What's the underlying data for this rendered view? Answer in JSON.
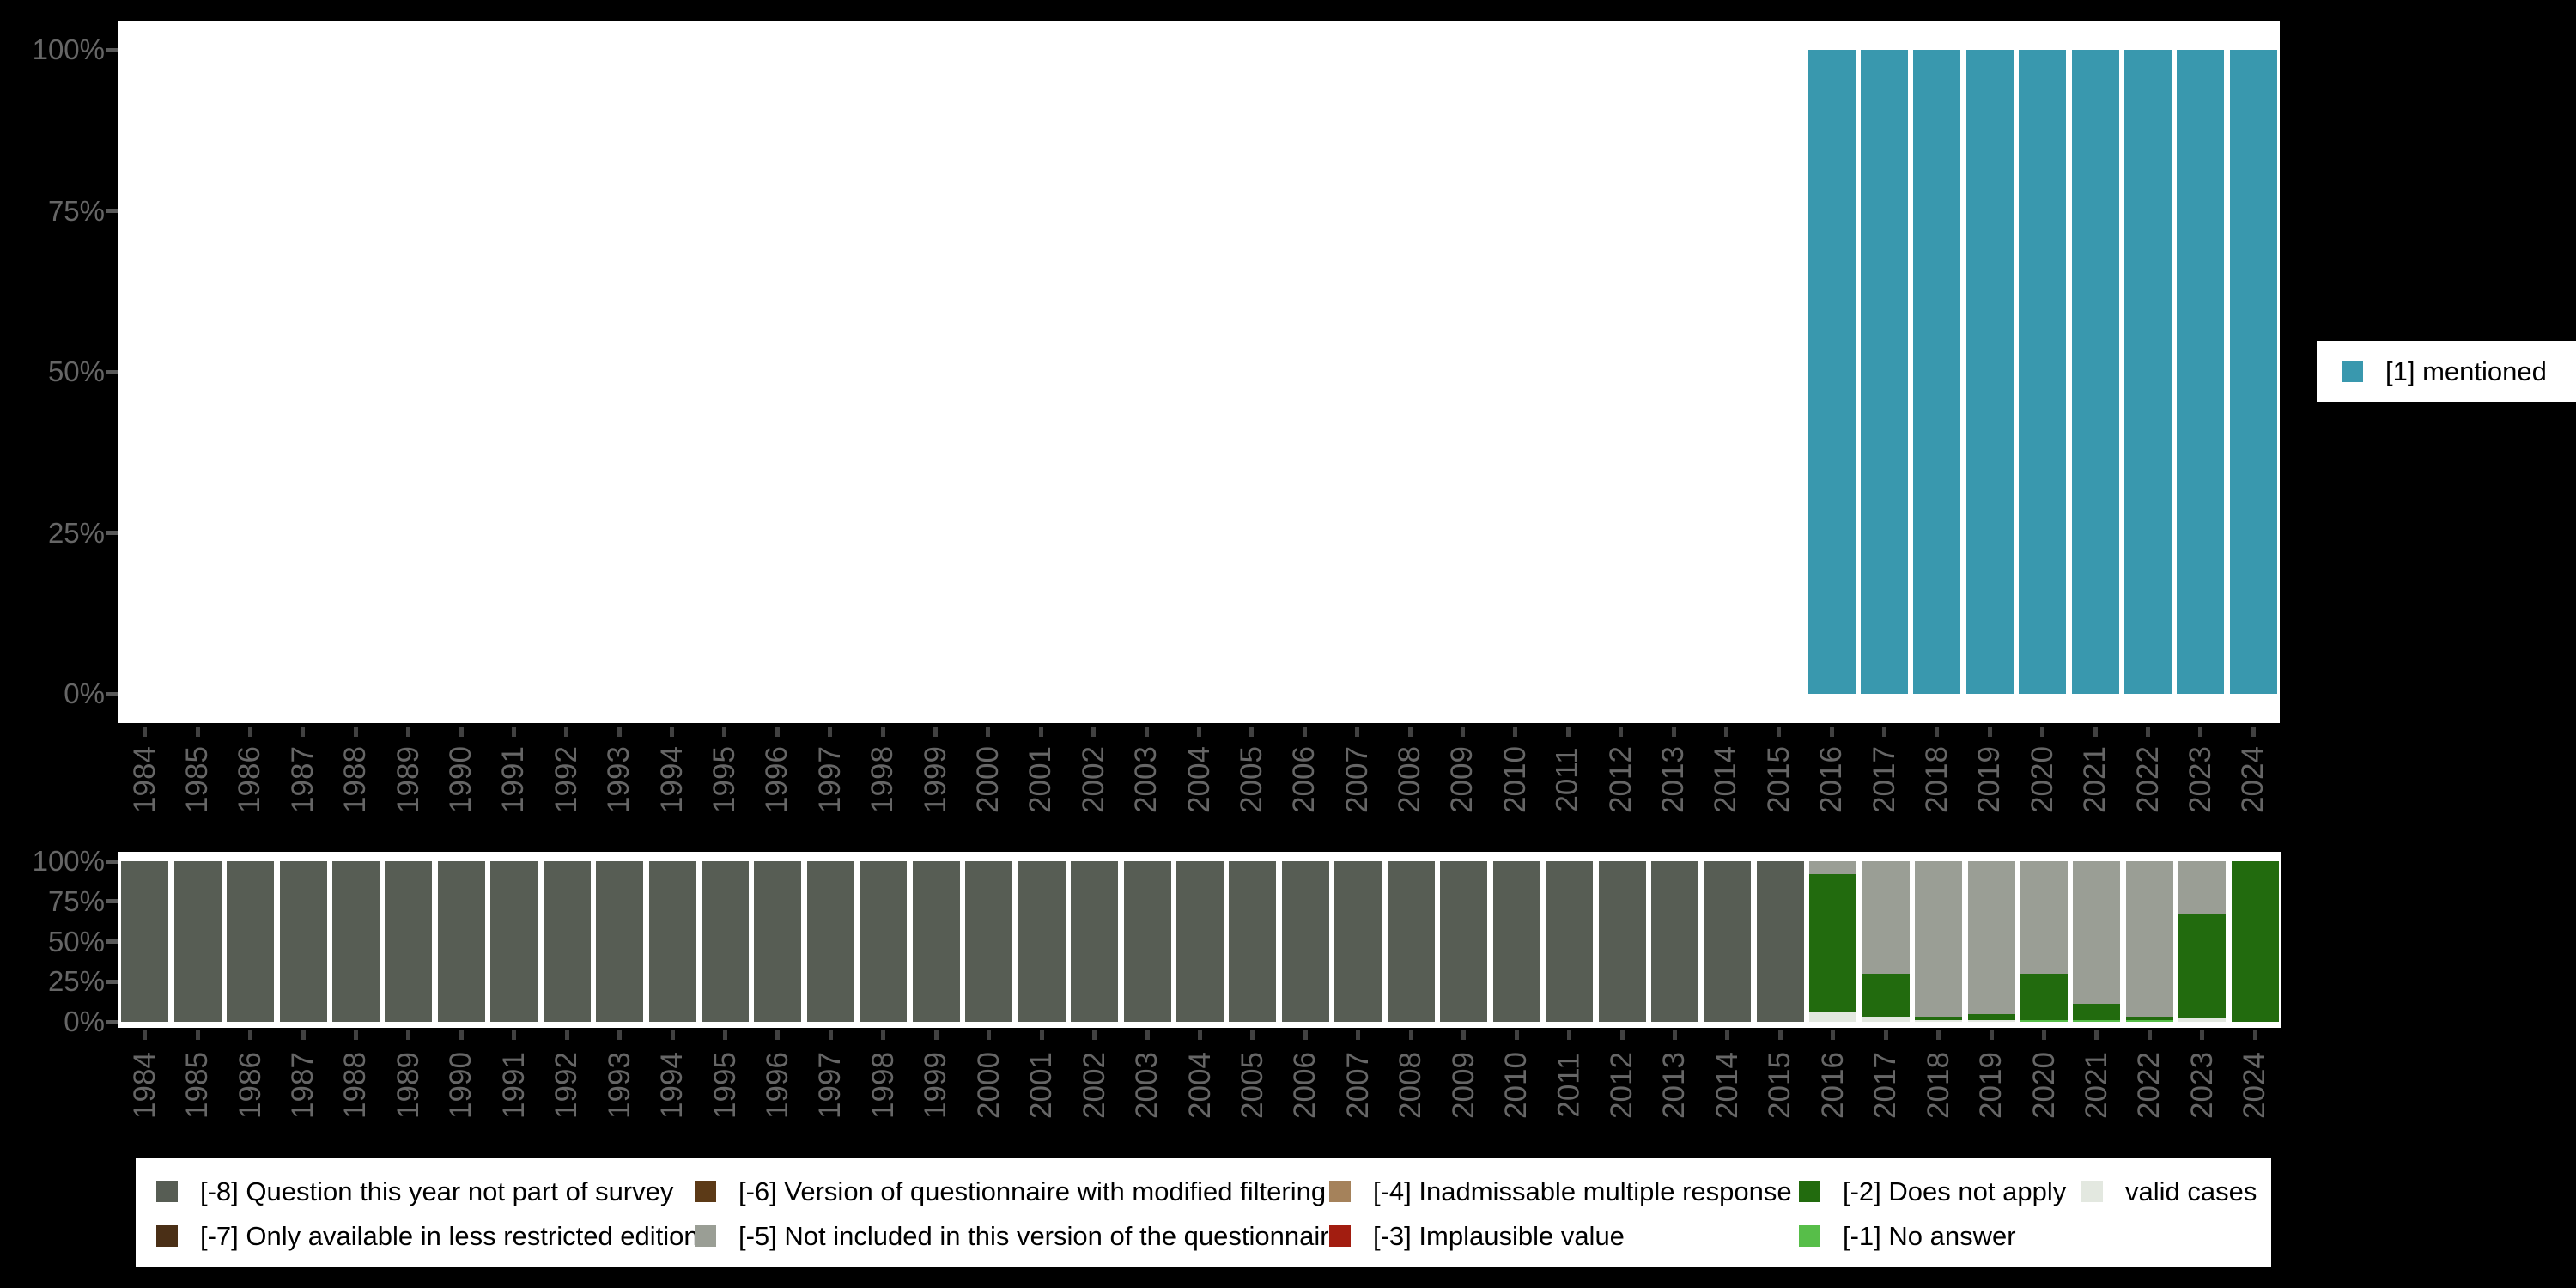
{
  "chart_data": [
    {
      "type": "bar",
      "title": "",
      "stacked": true,
      "grid": false,
      "legend_position": "right",
      "ylim": [
        0,
        100
      ],
      "y_tick_values": [
        0,
        25,
        50,
        75,
        100
      ],
      "y_tick_labels": [
        "0%",
        "25%",
        "50%",
        "75%",
        "100%"
      ],
      "categories": [
        "1984",
        "1985",
        "1986",
        "1987",
        "1988",
        "1989",
        "1990",
        "1991",
        "1992",
        "1993",
        "1994",
        "1995",
        "1996",
        "1997",
        "1998",
        "1999",
        "2000",
        "2001",
        "2002",
        "2003",
        "2004",
        "2005",
        "2006",
        "2007",
        "2008",
        "2009",
        "2010",
        "2011",
        "2012",
        "2013",
        "2014",
        "2015",
        "2016",
        "2017",
        "2018",
        "2019",
        "2020",
        "2021",
        "2022",
        "2023",
        "2024"
      ],
      "series": [
        {
          "name": "[1] mentioned",
          "color": "#3998AE",
          "values": [
            0,
            0,
            0,
            0,
            0,
            0,
            0,
            0,
            0,
            0,
            0,
            0,
            0,
            0,
            0,
            0,
            0,
            0,
            0,
            0,
            0,
            0,
            0,
            0,
            0,
            0,
            0,
            0,
            0,
            0,
            0,
            0,
            100,
            100,
            100,
            100,
            100,
            100,
            100,
            100,
            100
          ]
        }
      ]
    },
    {
      "type": "bar",
      "title": "",
      "stacked": true,
      "grid": false,
      "legend_position": "bottom",
      "ylim": [
        0,
        100
      ],
      "y_tick_values": [
        0,
        25,
        50,
        75,
        100
      ],
      "y_tick_labels": [
        "0%",
        "25%",
        "50%",
        "75%",
        "100%"
      ],
      "categories": [
        "1984",
        "1985",
        "1986",
        "1987",
        "1988",
        "1989",
        "1990",
        "1991",
        "1992",
        "1993",
        "1994",
        "1995",
        "1996",
        "1997",
        "1998",
        "1999",
        "2000",
        "2001",
        "2002",
        "2003",
        "2004",
        "2005",
        "2006",
        "2007",
        "2008",
        "2009",
        "2010",
        "2011",
        "2012",
        "2013",
        "2014",
        "2015",
        "2016",
        "2017",
        "2018",
        "2019",
        "2020",
        "2021",
        "2022",
        "2023",
        "2024"
      ],
      "series": [
        {
          "name": "valid cases",
          "color": "#E3E8E0",
          "values": [
            0,
            0,
            0,
            0,
            0,
            0,
            0,
            0,
            0,
            0,
            0,
            0,
            0,
            0,
            0,
            0,
            0,
            0,
            0,
            0,
            0,
            0,
            0,
            0,
            0,
            0,
            0,
            0,
            0,
            0,
            0,
            0,
            6,
            3,
            1,
            1,
            0,
            0,
            0,
            3,
            0
          ]
        },
        {
          "name": "[-1] No answer",
          "color": "#57BE49",
          "values": [
            0,
            0,
            0,
            0,
            0,
            0,
            0,
            0,
            0,
            0,
            0,
            0,
            0,
            0,
            0,
            0,
            0,
            0,
            0,
            0,
            0,
            0,
            0,
            0,
            0,
            0,
            0,
            0,
            0,
            0,
            0,
            0,
            0,
            0,
            0,
            0,
            1,
            1,
            1,
            0,
            0
          ]
        },
        {
          "name": "[-2] Does not apply",
          "color": "#226B0E",
          "values": [
            0,
            0,
            0,
            0,
            0,
            0,
            0,
            0,
            0,
            0,
            0,
            0,
            0,
            0,
            0,
            0,
            0,
            0,
            0,
            0,
            0,
            0,
            0,
            0,
            0,
            0,
            0,
            0,
            0,
            0,
            0,
            0,
            86,
            27,
            2,
            4,
            29,
            10,
            2,
            64,
            100
          ]
        },
        {
          "name": "[-5] Not included in this version of the questionnaire",
          "color": "#9A9E95",
          "values": [
            0,
            0,
            0,
            0,
            0,
            0,
            0,
            0,
            0,
            0,
            0,
            0,
            0,
            0,
            0,
            0,
            0,
            0,
            0,
            0,
            0,
            0,
            0,
            0,
            0,
            0,
            0,
            0,
            0,
            0,
            0,
            0,
            8,
            70,
            97,
            95,
            70,
            89,
            97,
            33,
            0
          ]
        },
        {
          "name": "[-8] Question this year not part of survey",
          "color": "#575D54",
          "values": [
            100,
            100,
            100,
            100,
            100,
            100,
            100,
            100,
            100,
            100,
            100,
            100,
            100,
            100,
            100,
            100,
            100,
            100,
            100,
            100,
            100,
            100,
            100,
            100,
            100,
            100,
            100,
            100,
            100,
            100,
            100,
            100,
            0,
            0,
            0,
            0,
            0,
            0,
            0,
            0,
            0
          ]
        }
      ]
    }
  ],
  "legend_top": {
    "items": [
      {
        "label": "[1] mentioned",
        "color": "#3998AE"
      }
    ]
  },
  "legend_bottom": {
    "columns": [
      [
        {
          "label": "[-8] Question this year not part of survey",
          "color": "#575D54"
        },
        {
          "label": "[-7] Only available in less restricted edition",
          "color": "#4A2F16"
        }
      ],
      [
        {
          "label": "[-6] Version of questionnaire with modified filtering",
          "color": "#5C3A17"
        },
        {
          "label": "[-5] Not included in this version of the questionnaire",
          "color": "#9A9E95"
        }
      ],
      [
        {
          "label": "[-4] Inadmissable multiple response",
          "color": "#A5825B"
        },
        {
          "label": "[-3] Implausible value",
          "color": "#A21D10"
        }
      ],
      [
        {
          "label": "[-2] Does not apply",
          "color": "#226B0E"
        },
        {
          "label": "[-1] No answer",
          "color": "#57BE49"
        }
      ],
      [
        {
          "label": "valid cases",
          "color": "#E3E8E0"
        }
      ]
    ]
  }
}
